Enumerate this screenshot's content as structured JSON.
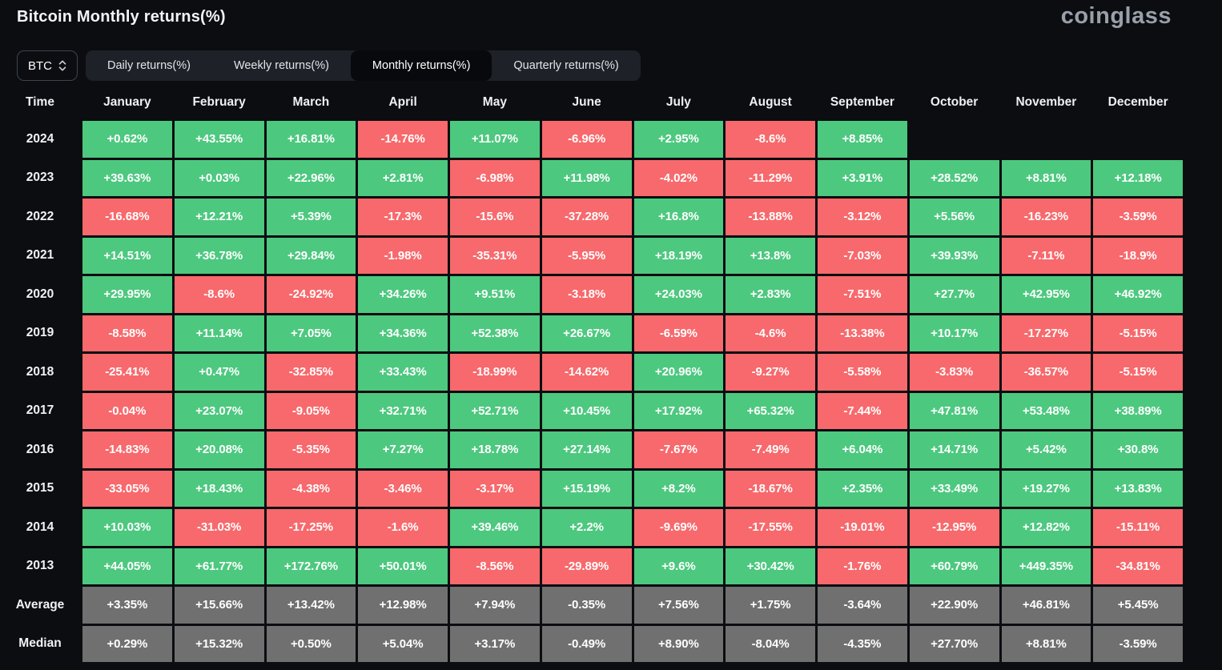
{
  "page": {
    "title": "Bitcoin Monthly returns(%)",
    "logo": "coinglass"
  },
  "controls": {
    "coin_selector": {
      "value": "BTC",
      "icon": "up-down-chevron-icon"
    },
    "tabs": [
      {
        "label": "Daily returns(%)",
        "active": false
      },
      {
        "label": "Weekly returns(%)",
        "active": false
      },
      {
        "label": "Monthly returns(%)",
        "active": true
      },
      {
        "label": "Quarterly returns(%)",
        "active": false
      }
    ]
  },
  "colors": {
    "positive": "#4dc87f",
    "negative": "#f7696c",
    "summary": "#707070",
    "background": "#0b0d11"
  },
  "chart_data": {
    "type": "table",
    "title": "Bitcoin Monthly returns(%)",
    "columns": [
      "Time",
      "January",
      "February",
      "March",
      "April",
      "May",
      "June",
      "July",
      "August",
      "September",
      "October",
      "November",
      "December"
    ],
    "rows": [
      {
        "label": "2024",
        "summary": false,
        "values": [
          "+0.62%",
          "+43.55%",
          "+16.81%",
          "-14.76%",
          "+11.07%",
          "-6.96%",
          "+2.95%",
          "-8.6%",
          "+8.85%",
          "",
          "",
          ""
        ]
      },
      {
        "label": "2023",
        "summary": false,
        "values": [
          "+39.63%",
          "+0.03%",
          "+22.96%",
          "+2.81%",
          "-6.98%",
          "+11.98%",
          "-4.02%",
          "-11.29%",
          "+3.91%",
          "+28.52%",
          "+8.81%",
          "+12.18%"
        ]
      },
      {
        "label": "2022",
        "summary": false,
        "values": [
          "-16.68%",
          "+12.21%",
          "+5.39%",
          "-17.3%",
          "-15.6%",
          "-37.28%",
          "+16.8%",
          "-13.88%",
          "-3.12%",
          "+5.56%",
          "-16.23%",
          "-3.59%"
        ]
      },
      {
        "label": "2021",
        "summary": false,
        "values": [
          "+14.51%",
          "+36.78%",
          "+29.84%",
          "-1.98%",
          "-35.31%",
          "-5.95%",
          "+18.19%",
          "+13.8%",
          "-7.03%",
          "+39.93%",
          "-7.11%",
          "-18.9%"
        ]
      },
      {
        "label": "2020",
        "summary": false,
        "values": [
          "+29.95%",
          "-8.6%",
          "-24.92%",
          "+34.26%",
          "+9.51%",
          "-3.18%",
          "+24.03%",
          "+2.83%",
          "-7.51%",
          "+27.7%",
          "+42.95%",
          "+46.92%"
        ]
      },
      {
        "label": "2019",
        "summary": false,
        "values": [
          "-8.58%",
          "+11.14%",
          "+7.05%",
          "+34.36%",
          "+52.38%",
          "+26.67%",
          "-6.59%",
          "-4.6%",
          "-13.38%",
          "+10.17%",
          "-17.27%",
          "-5.15%"
        ]
      },
      {
        "label": "2018",
        "summary": false,
        "values": [
          "-25.41%",
          "+0.47%",
          "-32.85%",
          "+33.43%",
          "-18.99%",
          "-14.62%",
          "+20.96%",
          "-9.27%",
          "-5.58%",
          "-3.83%",
          "-36.57%",
          "-5.15%"
        ]
      },
      {
        "label": "2017",
        "summary": false,
        "values": [
          "-0.04%",
          "+23.07%",
          "-9.05%",
          "+32.71%",
          "+52.71%",
          "+10.45%",
          "+17.92%",
          "+65.32%",
          "-7.44%",
          "+47.81%",
          "+53.48%",
          "+38.89%"
        ]
      },
      {
        "label": "2016",
        "summary": false,
        "values": [
          "-14.83%",
          "+20.08%",
          "-5.35%",
          "+7.27%",
          "+18.78%",
          "+27.14%",
          "-7.67%",
          "-7.49%",
          "+6.04%",
          "+14.71%",
          "+5.42%",
          "+30.8%"
        ]
      },
      {
        "label": "2015",
        "summary": false,
        "values": [
          "-33.05%",
          "+18.43%",
          "-4.38%",
          "-3.46%",
          "-3.17%",
          "+15.19%",
          "+8.2%",
          "-18.67%",
          "+2.35%",
          "+33.49%",
          "+19.27%",
          "+13.83%"
        ]
      },
      {
        "label": "2014",
        "summary": false,
        "values": [
          "+10.03%",
          "-31.03%",
          "-17.25%",
          "-1.6%",
          "+39.46%",
          "+2.2%",
          "-9.69%",
          "-17.55%",
          "-19.01%",
          "-12.95%",
          "+12.82%",
          "-15.11%"
        ]
      },
      {
        "label": "2013",
        "summary": false,
        "values": [
          "+44.05%",
          "+61.77%",
          "+172.76%",
          "+50.01%",
          "-8.56%",
          "-29.89%",
          "+9.6%",
          "+30.42%",
          "-1.76%",
          "+60.79%",
          "+449.35%",
          "-34.81%"
        ]
      },
      {
        "label": "Average",
        "summary": true,
        "values": [
          "+3.35%",
          "+15.66%",
          "+13.42%",
          "+12.98%",
          "+7.94%",
          "-0.35%",
          "+7.56%",
          "+1.75%",
          "-3.64%",
          "+22.90%",
          "+46.81%",
          "+5.45%"
        ]
      },
      {
        "label": "Median",
        "summary": true,
        "values": [
          "+0.29%",
          "+15.32%",
          "+0.50%",
          "+5.04%",
          "+3.17%",
          "-0.49%",
          "+8.90%",
          "-8.04%",
          "-4.35%",
          "+27.70%",
          "+8.81%",
          "-3.59%"
        ]
      }
    ]
  }
}
